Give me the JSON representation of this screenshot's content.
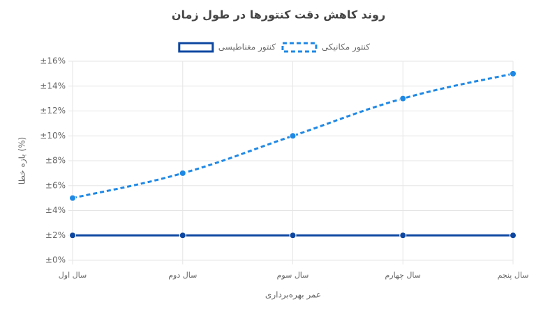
{
  "chart_data": {
    "type": "line",
    "title": "روند کاهش دقت کنتورها در طول زمان",
    "x_label": "عمر بهره‌برداری",
    "y_label": "بازه خطا (%)",
    "categories": [
      "سال اول",
      "سال دوم",
      "سال سوم",
      "سال چهارم",
      "سال پنجم"
    ],
    "series": [
      {
        "name": "کنتور مکانیکی",
        "color": "#1e88e5",
        "dashed": true,
        "values": [
          5,
          7,
          10,
          13,
          15
        ]
      },
      {
        "name": "کنتور مغناطیسی",
        "color": "#0d47a1",
        "dashed": false,
        "values": [
          2,
          2,
          2,
          2,
          2
        ]
      }
    ],
    "ylim": [
      0,
      16
    ],
    "yticks": [
      {
        "value": 0,
        "label": "±0%"
      },
      {
        "value": 2,
        "label": "±2%"
      },
      {
        "value": 4,
        "label": "±4%"
      },
      {
        "value": 6,
        "label": "±6%"
      },
      {
        "value": 8,
        "label": "±8%"
      },
      {
        "value": 10,
        "label": "±10%"
      },
      {
        "value": 12,
        "label": "±12%"
      },
      {
        "value": 14,
        "label": "±14%"
      },
      {
        "value": 16,
        "label": "±16%"
      }
    ],
    "grid": true
  }
}
